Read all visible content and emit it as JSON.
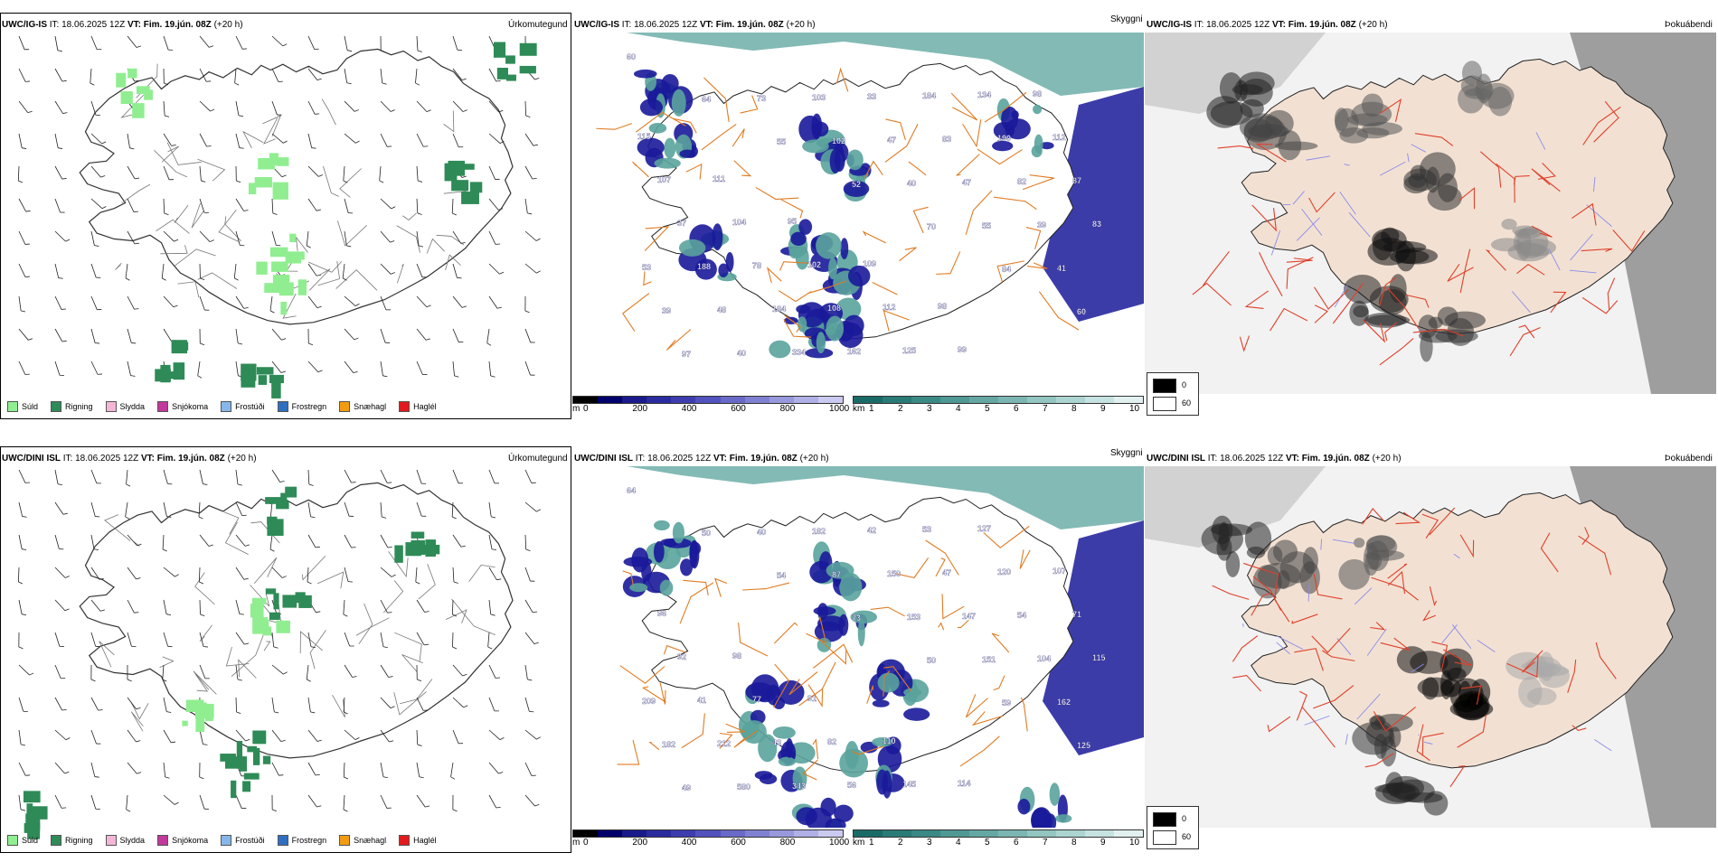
{
  "rows": [
    {
      "model": "UWC/IG-IS",
      "it_label": "IT:",
      "it_value": "18.06.2025 12Z",
      "vt_label": "VT:",
      "vt_value": "Fim. 19.jún. 08Z",
      "lead": "(+20 h)",
      "precip_title": "Úrkomutegund",
      "cloud_title": "Skyggni",
      "fog_title": "Þokuábendi",
      "vis_numbers": [
        "60",
        "64",
        "55",
        "52",
        "70",
        "84",
        "60",
        "97",
        "73",
        "102",
        "40",
        "55",
        "41",
        "39",
        "40",
        "103",
        "47",
        "47",
        "39",
        "53",
        "48",
        "334",
        "33",
        "83",
        "82",
        "83",
        "188",
        "184",
        "162",
        "184",
        "190",
        "87",
        "37",
        "78",
        "108",
        "125",
        "134",
        "112",
        "107",
        "104",
        "102",
        "112",
        "99",
        "98",
        "115",
        "111",
        "95",
        "109",
        "98"
      ]
    },
    {
      "model": "UWC/DINI ISL",
      "it_label": "IT:",
      "it_value": "18.06.2025 12Z",
      "vt_label": "VT:",
      "vt_value": "Fim. 19.jún. 08Z",
      "lead": "(+20 h)",
      "precip_title": "Úrkomutegund",
      "cloud_title": "Skyggni",
      "fog_title": "Þokuábendi",
      "vis_numbers": [
        "64",
        "50",
        "54",
        "73",
        "50",
        "59",
        "125",
        "49",
        "40",
        "87",
        "153",
        "151",
        "162",
        "182",
        "580",
        "182",
        "150",
        "147",
        "104",
        "209",
        "212",
        "343",
        "42",
        "47",
        "54",
        "115",
        "41",
        "43",
        "56",
        "53",
        "120",
        "71",
        "92",
        "77",
        "82",
        "145",
        "127",
        "107",
        "96",
        "98",
        "91",
        "110",
        "114"
      ]
    }
  ],
  "precip_legend": [
    {
      "label": "Súld",
      "color": "#90ee90"
    },
    {
      "label": "Rigning",
      "color": "#2e8b57"
    },
    {
      "label": "Slydda",
      "color": "#f4b6d6"
    },
    {
      "label": "Snjókoma",
      "color": "#c0399b"
    },
    {
      "label": "Frostúði",
      "color": "#87b7ea"
    },
    {
      "label": "Frostregn",
      "color": "#2f6fc2"
    },
    {
      "label": "Snæhagl",
      "color": "#f39c12"
    },
    {
      "label": "Haglél",
      "color": "#e31a1c"
    }
  ],
  "cloud_base_scale": {
    "unit": "m",
    "ticks": [
      "0",
      "200",
      "400",
      "600",
      "800",
      "1000"
    ],
    "colors": [
      "#000000",
      "#00006a",
      "#1a1a8c",
      "#2b2ba0",
      "#3d3db0",
      "#5252be",
      "#6969c8",
      "#8080d2",
      "#9898dc",
      "#b0b0e6",
      "#cacaf0"
    ]
  },
  "visibility_scale": {
    "unit": "km",
    "ticks": [
      "1",
      "2",
      "3",
      "4",
      "5",
      "6",
      "7",
      "8",
      "9",
      "10"
    ],
    "colors": [
      "#1a6b68",
      "#2a7a76",
      "#3b8985",
      "#4f9894",
      "#64a7a3",
      "#7bb6b2",
      "#93c5c1",
      "#acd4d1",
      "#c6e3e1",
      "#e2f1f0"
    ]
  },
  "fog_key": {
    "black_value": "0",
    "white_value": "60"
  },
  "colors": {
    "land_fill_cloud": "#ffffff",
    "land_fill_fog": "#f2e1d3",
    "roads": "#e07b22",
    "fog_roads": "#e0402a",
    "rivers": "#8b8bea",
    "sea_vis": "#5aa39c",
    "cloud_low": "#1a1a9a"
  }
}
